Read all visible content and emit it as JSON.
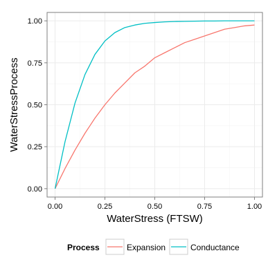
{
  "chart_data": {
    "type": "line",
    "xlabel": "WaterStress (FTSW)",
    "ylabel": "WaterStressProcess",
    "xlim": [
      -0.04,
      1.04
    ],
    "ylim": [
      -0.05,
      1.05
    ],
    "x_ticks": [
      0,
      0.25,
      0.5,
      0.75,
      1
    ],
    "x_tick_labels": [
      "0.00",
      "0.25",
      "0.50",
      "0.75",
      "1.00"
    ],
    "y_ticks": [
      0,
      0.25,
      0.5,
      0.75,
      1
    ],
    "y_tick_labels": [
      "0.00",
      "0.25",
      "0.50",
      "0.75",
      "1.00"
    ],
    "grid": true,
    "legend": {
      "title": "Process",
      "placement": "bottom"
    },
    "x": [
      0,
      0.05,
      0.1,
      0.15,
      0.2,
      0.25,
      0.3,
      0.35,
      0.4,
      0.45,
      0.5,
      0.55,
      0.6,
      0.65,
      0.7,
      0.75,
      0.8,
      0.85,
      0.9,
      0.95,
      1.0
    ],
    "series": [
      {
        "name": "Expansion",
        "color": "#F8766D",
        "values": [
          0,
          0.12,
          0.23,
          0.33,
          0.42,
          0.5,
          0.57,
          0.63,
          0.69,
          0.73,
          0.78,
          0.81,
          0.84,
          0.87,
          0.89,
          0.91,
          0.93,
          0.95,
          0.96,
          0.97,
          0.975
        ]
      },
      {
        "name": "Conductance",
        "color": "#00BFC4",
        "values": [
          0,
          0.28,
          0.51,
          0.68,
          0.8,
          0.88,
          0.93,
          0.96,
          0.975,
          0.985,
          0.99,
          0.994,
          0.996,
          0.997,
          0.998,
          0.999,
          0.999,
          1.0,
          1.0,
          1.0,
          1.0
        ]
      }
    ]
  }
}
